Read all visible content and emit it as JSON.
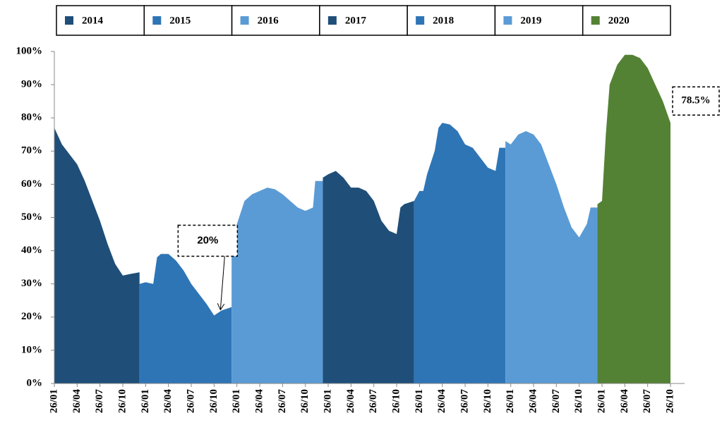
{
  "chart_data": {
    "type": "area",
    "series": [
      {
        "name": "2014",
        "color": "#1f4e79",
        "x": [
          0,
          1,
          2,
          3,
          4,
          5,
          6,
          7,
          8,
          9,
          10,
          11.2
        ],
        "values": [
          77,
          72,
          69,
          66,
          61,
          55,
          49,
          42,
          36,
          32.5,
          33,
          33.5
        ]
      },
      {
        "name": "2015",
        "color": "#2e75b6",
        "x": [
          11.2,
          12,
          13,
          13.5,
          14,
          15,
          16,
          17,
          18,
          19,
          20,
          21,
          22,
          23.3
        ],
        "values": [
          30,
          30.5,
          30,
          38,
          39,
          39,
          37,
          34,
          30,
          27,
          24,
          20.5,
          22,
          23
        ]
      },
      {
        "name": "2016",
        "color": "#5b9bd5",
        "x": [
          23.3,
          24,
          25,
          26,
          27,
          28,
          29,
          30,
          31,
          32,
          33,
          34,
          34.3,
          35.3
        ],
        "values": [
          45,
          48,
          55,
          57,
          58,
          59,
          58.5,
          57,
          55,
          53,
          52,
          53,
          61,
          61
        ]
      },
      {
        "name": "2017",
        "color": "#1f4e79",
        "x": [
          35.3,
          36,
          37,
          38,
          39,
          40,
          41,
          42,
          43,
          44,
          45,
          45.5,
          46,
          47.3
        ],
        "values": [
          62,
          63,
          64,
          62,
          59,
          59,
          58,
          55,
          49,
          46,
          45,
          53,
          54,
          55
        ]
      },
      {
        "name": "2018",
        "color": "#2e75b6",
        "x": [
          47.3,
          48,
          48.5,
          49,
          50,
          50.5,
          51,
          52,
          53,
          54,
          55,
          56,
          57,
          58,
          58.5,
          59.3
        ],
        "values": [
          55,
          58,
          58,
          63,
          70,
          77,
          78.5,
          78,
          76,
          72,
          71,
          68,
          65,
          64,
          71,
          71
        ]
      },
      {
        "name": "2019",
        "color": "#5b9bd5",
        "x": [
          59.3,
          60,
          61,
          62,
          63,
          64,
          65,
          66,
          67,
          68,
          69,
          70,
          70.5,
          71.4
        ],
        "values": [
          73,
          72,
          75,
          76,
          75,
          72,
          66,
          60,
          53,
          47,
          44,
          48,
          53,
          53
        ]
      },
      {
        "name": "2020",
        "color": "#548235",
        "x": [
          71.4,
          72,
          72.5,
          73,
          73.5,
          74,
          75,
          76,
          77,
          78,
          79,
          80,
          81
        ],
        "values": [
          54,
          55,
          75,
          90,
          93,
          96,
          99,
          99,
          98,
          95,
          90,
          85,
          78.5
        ]
      }
    ],
    "xlim": [
      0,
      81
    ],
    "xticks": [
      {
        "value": 0,
        "label": "26/01"
      },
      {
        "value": 3,
        "label": "26/04"
      },
      {
        "value": 6,
        "label": "26/07"
      },
      {
        "value": 9,
        "label": "26/10"
      },
      {
        "value": 12,
        "label": "26/01"
      },
      {
        "value": 15,
        "label": "26/04"
      },
      {
        "value": 18,
        "label": "26/07"
      },
      {
        "value": 21,
        "label": "26/10"
      },
      {
        "value": 24,
        "label": "26/01"
      },
      {
        "value": 27,
        "label": "26/04"
      },
      {
        "value": 30,
        "label": "26/07"
      },
      {
        "value": 33,
        "label": "26/10"
      },
      {
        "value": 36,
        "label": "26/01"
      },
      {
        "value": 39,
        "label": "26/04"
      },
      {
        "value": 42,
        "label": "26/07"
      },
      {
        "value": 45,
        "label": "26/10"
      },
      {
        "value": 48,
        "label": "26/01"
      },
      {
        "value": 51,
        "label": "26/04"
      },
      {
        "value": 54,
        "label": "26/07"
      },
      {
        "value": 57,
        "label": "26/10"
      },
      {
        "value": 60,
        "label": "26/01"
      },
      {
        "value": 63,
        "label": "26/04"
      },
      {
        "value": 66,
        "label": "26/07"
      },
      {
        "value": 69,
        "label": "26/10"
      },
      {
        "value": 72,
        "label": "26/01"
      },
      {
        "value": 75,
        "label": "26/04"
      },
      {
        "value": 78,
        "label": "26/07"
      },
      {
        "value": 81,
        "label": "26/10"
      }
    ],
    "ylim": [
      0,
      100
    ],
    "yticks": [
      {
        "value": 0,
        "label": "0%"
      },
      {
        "value": 10,
        "label": "10%"
      },
      {
        "value": 20,
        "label": "20%"
      },
      {
        "value": 30,
        "label": "30%"
      },
      {
        "value": 40,
        "label": "40%"
      },
      {
        "value": 50,
        "label": "50%"
      },
      {
        "value": 60,
        "label": "60%"
      },
      {
        "value": 70,
        "label": "70%"
      },
      {
        "value": 80,
        "label": "80%"
      },
      {
        "value": 90,
        "label": "90%"
      },
      {
        "value": 100,
        "label": "100%"
      }
    ],
    "annotations": [
      {
        "text": "20%",
        "x": 21,
        "y": 20.5
      },
      {
        "text": "78.5%",
        "x": 81,
        "y": 78.5
      }
    ]
  }
}
